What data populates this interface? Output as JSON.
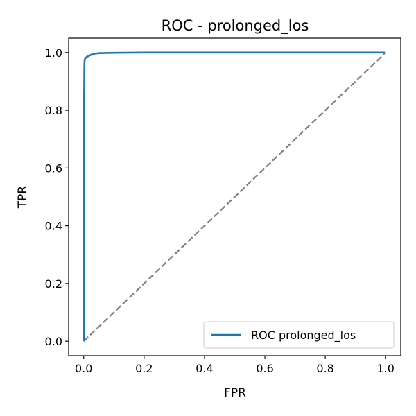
{
  "chart_data": {
    "type": "line",
    "title": "ROC - prolonged_los",
    "xlabel": "FPR",
    "ylabel": "TPR",
    "xlim": [
      -0.05,
      1.05
    ],
    "ylim": [
      -0.05,
      1.05
    ],
    "x_ticks": [
      "0.0",
      "0.2",
      "0.4",
      "0.6",
      "0.8",
      "1.0"
    ],
    "y_ticks": [
      "0.0",
      "0.2",
      "0.4",
      "0.6",
      "0.8",
      "1.0"
    ],
    "grid": false,
    "legend": {
      "location": "lower-right",
      "entries": [
        "ROC prolonged_los"
      ]
    },
    "series": [
      {
        "name": "ROC prolonged_los",
        "color": "#1f77b4",
        "style": "solid",
        "x": [
          0.0,
          0.0,
          0.001,
          0.002,
          0.003,
          0.005,
          0.01,
          0.02,
          0.03,
          0.05,
          0.1,
          0.2,
          0.4,
          0.6,
          0.8,
          1.0
        ],
        "y": [
          0.0,
          0.5,
          0.8,
          0.95,
          0.975,
          0.98,
          0.985,
          0.99,
          0.995,
          0.998,
          0.999,
          1.0,
          1.0,
          1.0,
          1.0,
          1.0
        ]
      },
      {
        "color": "#808080",
        "style": "dashed",
        "x": [
          0.0,
          1.0
        ],
        "y": [
          0.0,
          1.0
        ]
      }
    ]
  }
}
